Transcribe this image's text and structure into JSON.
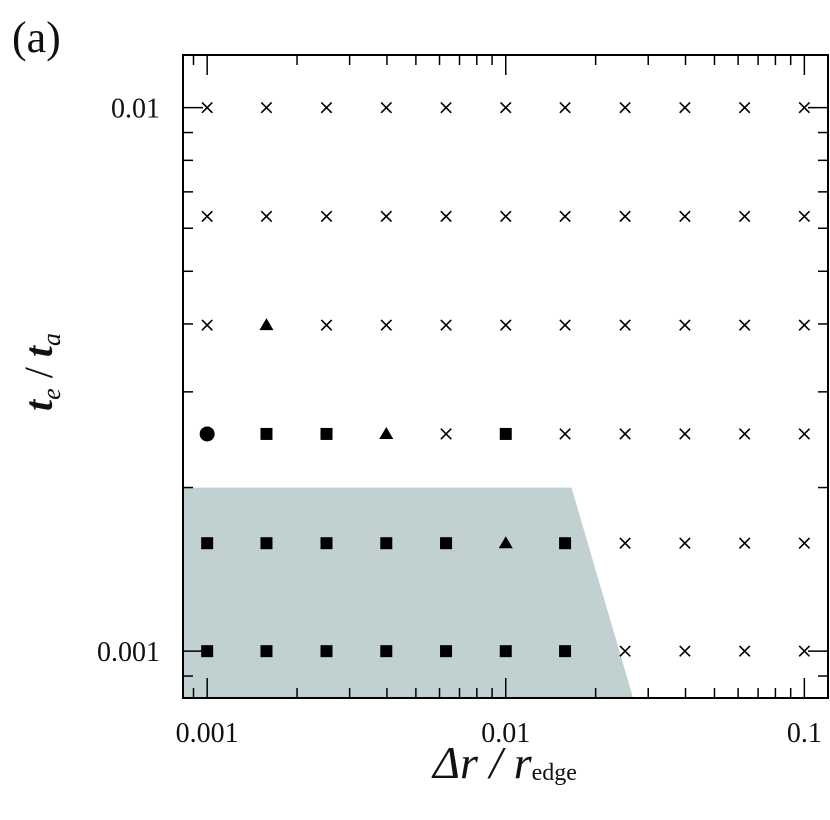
{
  "panel_label": "(a)",
  "chart_data": {
    "type": "scatter",
    "title": "",
    "xlabel": {
      "main": "Δr / r",
      "sub": "edge"
    },
    "ylabel": {
      "main": "t",
      "sub_e": "e",
      "sep": " / ",
      "main2": "t",
      "sub_a": "a"
    },
    "xscale": "log",
    "yscale": "log",
    "xlim": [
      0.00083,
      0.12
    ],
    "ylim": [
      0.00082,
      0.0125
    ],
    "x_ticks": [
      {
        "value": 0.001,
        "label": "0.001"
      },
      {
        "value": 0.01,
        "label": "0.01"
      },
      {
        "value": 0.1,
        "label": "0.1"
      }
    ],
    "y_ticks": [
      {
        "value": 0.001,
        "label": "0.001"
      },
      {
        "value": 0.01,
        "label": "0.01"
      }
    ],
    "x_grid": [
      0.001,
      0.00158,
      0.00251,
      0.00398,
      0.00631,
      0.01,
      0.0158,
      0.0251,
      0.0398,
      0.0631,
      0.1
    ],
    "y_grid": [
      0.001,
      0.00158,
      0.00251,
      0.00398,
      0.00631,
      0.01
    ],
    "markers": [
      [
        "square",
        "square",
        "square",
        "square",
        "square",
        "square",
        "square",
        "cross",
        "cross",
        "cross",
        "cross"
      ],
      [
        "square",
        "square",
        "square",
        "square",
        "square",
        "triangle",
        "square",
        "cross",
        "cross",
        "cross",
        "cross"
      ],
      [
        "circle",
        "square",
        "square",
        "triangle",
        "cross",
        "square",
        "cross",
        "cross",
        "cross",
        "cross",
        "cross"
      ],
      [
        "cross",
        "triangle",
        "cross",
        "cross",
        "cross",
        "cross",
        "cross",
        "cross",
        "cross",
        "cross",
        "cross"
      ],
      [
        "cross",
        "cross",
        "cross",
        "cross",
        "cross",
        "cross",
        "cross",
        "cross",
        "cross",
        "cross",
        "cross"
      ],
      [
        "cross",
        "cross",
        "cross",
        "cross",
        "cross",
        "cross",
        "cross",
        "cross",
        "cross",
        "cross",
        "cross"
      ]
    ],
    "shaded_region": {
      "description": "stable region",
      "polygon": [
        [
          0.00083,
          0.00082
        ],
        [
          0.00083,
          0.002
        ],
        [
          0.0166,
          0.002
        ],
        [
          0.0267,
          0.00082
        ]
      ],
      "color": "#c1d0d1"
    },
    "grid": false
  }
}
